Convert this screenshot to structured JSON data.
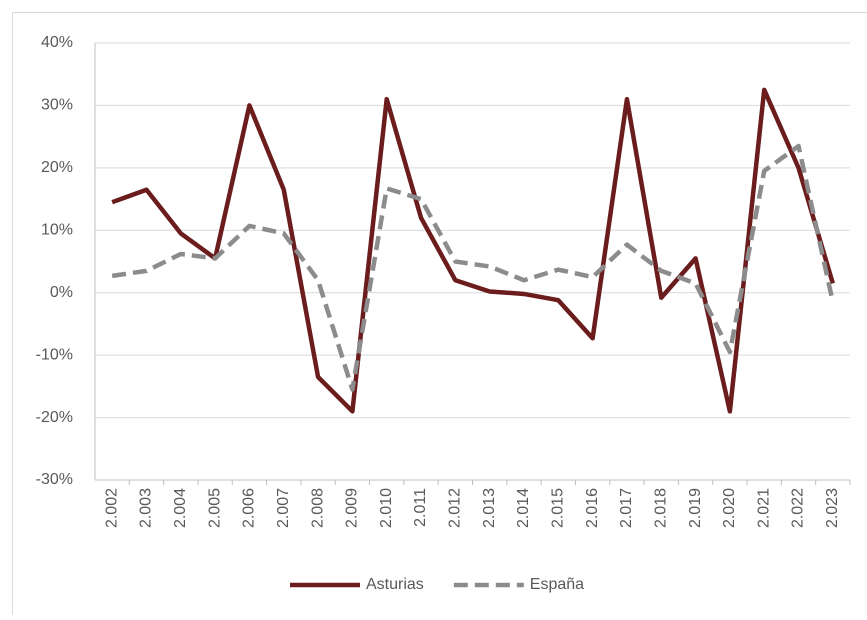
{
  "chart_data": {
    "type": "line",
    "categories": [
      "2.002",
      "2.003",
      "2.004",
      "2.005",
      "2.006",
      "2.007",
      "2.008",
      "2.009",
      "2.010",
      "2.011",
      "2.012",
      "2.013",
      "2.014",
      "2.015",
      "2.016",
      "2.017",
      "2.018",
      "2.019",
      "2.020",
      "2.021",
      "2.022",
      "2.023"
    ],
    "series": [
      {
        "name": "Asturias",
        "color": "#6b1c1c",
        "dash": false,
        "values": [
          14.5,
          16.5,
          9.5,
          5.5,
          30,
          16.5,
          -13.5,
          -19,
          31,
          12,
          2,
          0.2,
          -0.2,
          -1.2,
          -7.3,
          31,
          -0.8,
          5.5,
          -19,
          32.5,
          20,
          1.5
        ]
      },
      {
        "name": "España",
        "color": "#8c8c8c",
        "dash": true,
        "values": [
          2.7,
          3.5,
          6.2,
          5.5,
          10.7,
          9.5,
          2,
          -15.5,
          16.7,
          15,
          5,
          4.2,
          2,
          3.7,
          2.5,
          7.7,
          3.5,
          1.5,
          -9.5,
          19.5,
          23.5,
          -1.5
        ]
      }
    ],
    "ylim": [
      -30,
      40
    ],
    "yticks": [
      {
        "value": -30,
        "label": "-30%"
      },
      {
        "value": -20,
        "label": "-20%"
      },
      {
        "value": -10,
        "label": "-10%"
      },
      {
        "value": 0,
        "label": "0%"
      },
      {
        "value": 10,
        "label": "10%"
      },
      {
        "value": 20,
        "label": "20%"
      },
      {
        "value": 30,
        "label": "30%"
      },
      {
        "value": 40,
        "label": "40%"
      }
    ],
    "grid": true,
    "legend": "bottom"
  }
}
